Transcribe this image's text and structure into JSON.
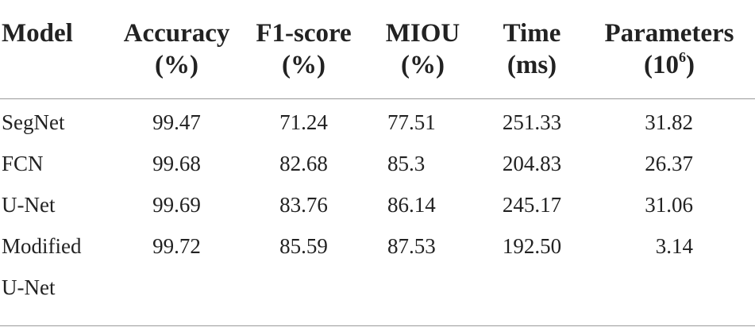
{
  "table": {
    "headers": {
      "model": "Model",
      "accuracy": {
        "line1": "Accuracy",
        "line2": "(%)"
      },
      "f1": {
        "line1": "F1-score",
        "line2": "(%)"
      },
      "miou": {
        "line1": "MIOU",
        "line2": "(%)"
      },
      "time": {
        "line1": "Time",
        "line2": "(ms)"
      },
      "params": {
        "line1": "Parameters",
        "line2_open": "(10",
        "line2_sup": "6",
        "line2_close": ")"
      }
    },
    "rows": [
      {
        "model": "SegNet",
        "model2": "",
        "accuracy": "99.47",
        "f1": "71.24",
        "miou": "77.51",
        "time": "251.33",
        "params": "31.82"
      },
      {
        "model": "FCN",
        "model2": "",
        "accuracy": "99.68",
        "f1": "82.68",
        "miou": "85.3",
        "time": "204.83",
        "params": "26.37"
      },
      {
        "model": "U-Net",
        "model2": "",
        "accuracy": "99.69",
        "f1": "83.76",
        "miou": "86.14",
        "time": "245.17",
        "params": "31.06"
      },
      {
        "model": "Modified",
        "model2": "U-Net",
        "accuracy": "99.72",
        "f1": "85.59",
        "miou": "87.53",
        "time": "192.50",
        "params": "3.14"
      }
    ]
  }
}
